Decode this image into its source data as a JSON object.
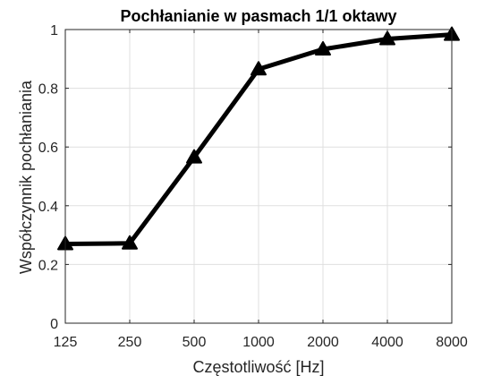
{
  "chart_data": {
    "type": "line",
    "title": "Pochłanianie w pasmach 1/1 oktawy",
    "xlabel": "Częstotliwość [Hz]",
    "ylabel": "Współczynnik pochłaniania",
    "categories": [
      "125",
      "250",
      "500",
      "1000",
      "2000",
      "4000",
      "8000"
    ],
    "series": [
      {
        "values": [
          0.27,
          0.272,
          0.565,
          0.865,
          0.933,
          0.968,
          0.983
        ],
        "marker": "triangle-up",
        "color": "#000000"
      }
    ],
    "ylim": [
      0,
      1
    ],
    "yticks": [
      0,
      0.2,
      0.4,
      0.6,
      0.8,
      1
    ],
    "ytick_labels": [
      "0",
      "0.2",
      "0.4",
      "0.6",
      "0.8",
      "1"
    ],
    "grid": true,
    "box": true,
    "colors": {
      "line": "#000000",
      "grid": "#dfdfdf",
      "axis": "#262626"
    }
  }
}
